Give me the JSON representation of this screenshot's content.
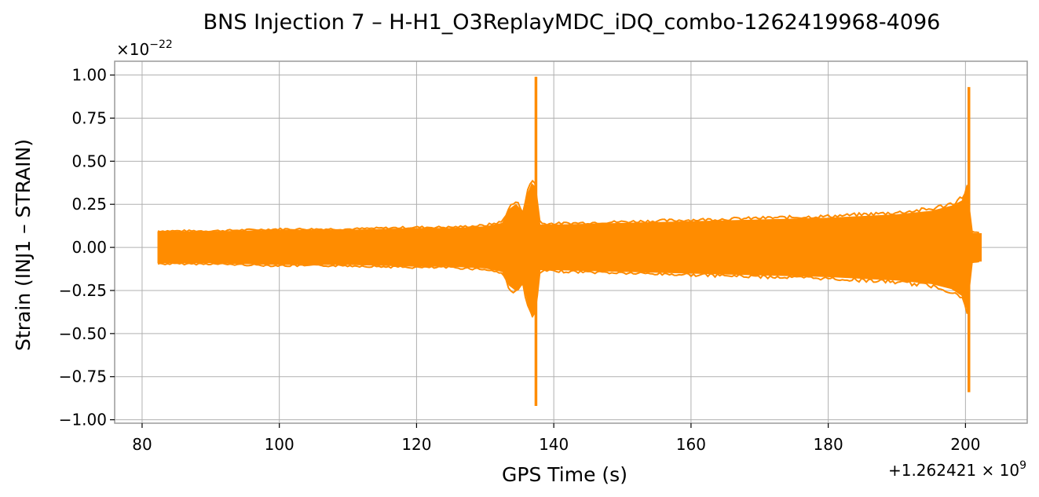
{
  "chart_data": {
    "type": "line",
    "title": "BNS Injection 7 – H-H1_O3ReplayMDC_iDQ_combo-1262419968-4096",
    "xlabel": "GPS Time (s)",
    "ylabel": "Strain (INJ1 – STRAIN)",
    "x_offset_label": "+1.262421 × 10",
    "x_offset_exponent": "9",
    "y_scale_label": "×10",
    "y_scale_exponent": "−22",
    "xlim": [
      76,
      209
    ],
    "ylim": [
      -1.02,
      1.08
    ],
    "x_ticks": [
      80,
      100,
      120,
      140,
      160,
      180,
      200
    ],
    "y_ticks": [
      1.0,
      0.75,
      0.5,
      0.25,
      0.0,
      -0.25,
      -0.5,
      -0.75,
      -1.0
    ],
    "x_tick_labels": [
      "80",
      "100",
      "120",
      "140",
      "160",
      "180",
      "200"
    ],
    "y_tick_labels": [
      "1.00",
      "0.75",
      "0.50",
      "0.25",
      "0.00",
      "−0.25",
      "−0.50",
      "−0.75",
      "−1.00"
    ],
    "grid": true,
    "series": [
      {
        "color": "#ff8c00",
        "x_range": [
          82.3,
          202.3
        ],
        "envelope": {
          "x": [
            82.3,
            90,
            100,
            110,
            120,
            125,
            130,
            132.5,
            133.5,
            134.5,
            135.5,
            136.3,
            136.8,
            137.3,
            138,
            140,
            150,
            160,
            170,
            180,
            185,
            190,
            195,
            198,
            199.5,
            200.3,
            200.8,
            201.2,
            202.3
          ],
          "upper": [
            0.09,
            0.09,
            0.1,
            0.1,
            0.11,
            0.11,
            0.12,
            0.14,
            0.22,
            0.25,
            0.2,
            0.32,
            0.37,
            0.35,
            0.13,
            0.13,
            0.14,
            0.15,
            0.16,
            0.17,
            0.18,
            0.19,
            0.21,
            0.24,
            0.27,
            0.34,
            0.09,
            0.08,
            0.08
          ],
          "lower": [
            -0.09,
            -0.09,
            -0.1,
            -0.1,
            -0.11,
            -0.11,
            -0.12,
            -0.14,
            -0.22,
            -0.25,
            -0.2,
            -0.33,
            -0.4,
            -0.36,
            -0.13,
            -0.13,
            -0.14,
            -0.15,
            -0.16,
            -0.17,
            -0.18,
            -0.19,
            -0.21,
            -0.24,
            -0.28,
            -0.36,
            -0.09,
            -0.08,
            -0.08
          ]
        },
        "spikes": [
          {
            "x": 137.4,
            "max": 0.99,
            "min": -0.92
          },
          {
            "x": 200.5,
            "max": 0.93,
            "min": -0.84
          }
        ]
      }
    ]
  }
}
